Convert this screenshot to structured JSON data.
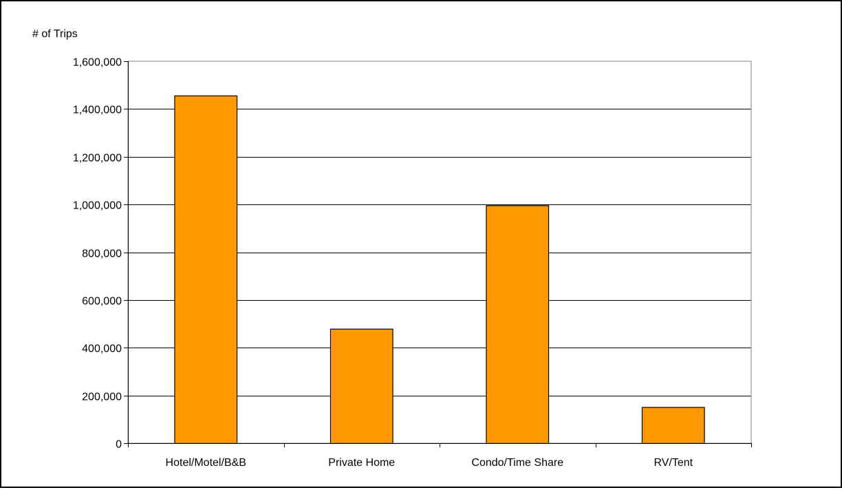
{
  "chart_data": {
    "type": "bar",
    "title": "",
    "ylabel": "# of Trips",
    "xlabel": "",
    "categories": [
      "Hotel/Motel/B&B",
      "Private Home",
      "Condo/Time Share",
      "RV/Tent"
    ],
    "values": [
      1455000,
      478000,
      995000,
      150000
    ],
    "ylim": [
      0,
      1600000
    ],
    "yticks": [
      0,
      200000,
      400000,
      600000,
      800000,
      1000000,
      1200000,
      1400000,
      1600000
    ],
    "ytick_labels": [
      "0",
      "200,000",
      "400,000",
      "600,000",
      "800,000",
      "1,000,000",
      "1,200,000",
      "1,400,000",
      "1,600,000"
    ],
    "grid": true,
    "legend": "none",
    "bar_color": "#FF9900"
  }
}
